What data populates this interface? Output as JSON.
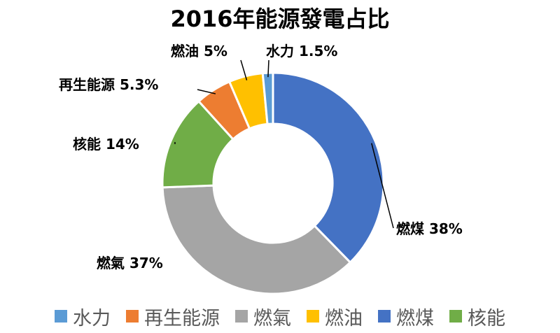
{
  "chart_data": {
    "type": "pie",
    "title": "2016年能源發電占比",
    "slices": [
      {
        "name": "燃煤",
        "value": 38,
        "label": "38%",
        "color": "#4472C4"
      },
      {
        "name": "燃氣",
        "value": 37,
        "label": "37%",
        "color": "#A5A5A5"
      },
      {
        "name": "核能",
        "value": 14,
        "label": "14%",
        "color": "#70AD47"
      },
      {
        "name": "再生能源",
        "value": 5.3,
        "label": "5.3%",
        "color": "#ED7D31"
      },
      {
        "name": "燃油",
        "value": 5,
        "label": "5%",
        "color": "#FFC000"
      },
      {
        "name": "水力",
        "value": 1.5,
        "label": "1.5%",
        "color": "#5B9BD5"
      }
    ],
    "legend": [
      {
        "name": "水力",
        "color": "#5B9BD5"
      },
      {
        "name": "再生能源",
        "color": "#ED7D31"
      },
      {
        "name": "燃氣",
        "color": "#A5A5A5"
      },
      {
        "name": "燃油",
        "color": "#FFC000"
      },
      {
        "name": "燃煤",
        "color": "#4472C4"
      },
      {
        "name": "核能",
        "color": "#70AD47"
      }
    ],
    "legend_position": "bottom",
    "hole": "donut"
  }
}
